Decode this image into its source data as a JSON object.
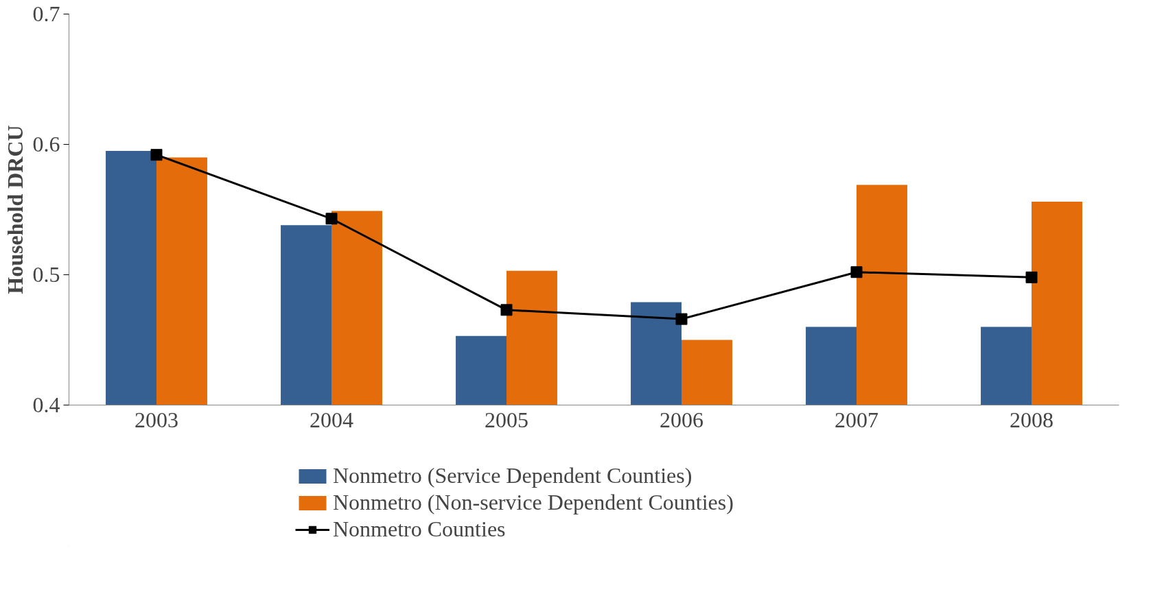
{
  "chart_data": {
    "type": "bar",
    "ylabel": "Household DRCU",
    "categories": [
      "2003",
      "2004",
      "2005",
      "2006",
      "2007",
      "2008"
    ],
    "series": [
      {
        "name": "Nonmetro (Service Dependent Counties)",
        "color": "#376092",
        "values": [
          0.595,
          0.538,
          0.453,
          0.479,
          0.46,
          0.46
        ]
      },
      {
        "name": "Nonmetro (Non-service Dependent Counties)",
        "color": "#e46c0a",
        "values": [
          0.59,
          0.549,
          0.503,
          0.45,
          0.569,
          0.556
        ]
      },
      {
        "name": "Nonmetro Counties",
        "type": "line",
        "color": "#000000",
        "marker": "square",
        "values": [
          0.592,
          0.543,
          0.473,
          0.466,
          0.502,
          0.498
        ]
      }
    ],
    "ylim": [
      0.4,
      0.7
    ],
    "yticks": [
      0.4,
      0.5,
      0.6,
      0.7
    ],
    "grid": false,
    "legend": "bottom"
  }
}
